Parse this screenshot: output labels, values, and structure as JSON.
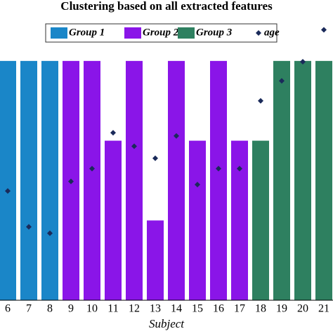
{
  "chart_data": {
    "type": "bar",
    "title": "Clustering based on all extracted features",
    "x_label": "Subject",
    "categories": [
      "6",
      "7",
      "8",
      "9",
      "10",
      "11",
      "12",
      "13",
      "14",
      "15",
      "16",
      "17",
      "18",
      "19",
      "20",
      "21"
    ],
    "series": [
      {
        "name": "Group 1",
        "color": "#1a86c8",
        "values": [
          3,
          3,
          3,
          null,
          null,
          null,
          null,
          null,
          null,
          null,
          null,
          null,
          null,
          null,
          null,
          null
        ]
      },
      {
        "name": "Group 2",
        "color": "#8a15e8",
        "values": [
          null,
          null,
          null,
          3,
          3,
          2,
          3,
          1,
          3,
          2,
          3,
          2,
          null,
          null,
          null,
          null
        ]
      },
      {
        "name": "Group 3",
        "color": "#2e8060",
        "values": [
          null,
          null,
          null,
          null,
          null,
          null,
          null,
          null,
          null,
          null,
          null,
          null,
          2,
          3,
          3,
          3
        ]
      },
      {
        "name": "age",
        "type": "scatter",
        "color": "#1a2a5a",
        "values": [
          1.37,
          0.92,
          0.84,
          1.49,
          1.65,
          2.1,
          1.93,
          1.78,
          2.06,
          1.45,
          1.65,
          1.65,
          2.5,
          2.75,
          2.99,
          3.39
        ]
      }
    ],
    "ylim": [
      0,
      3.5
    ]
  }
}
